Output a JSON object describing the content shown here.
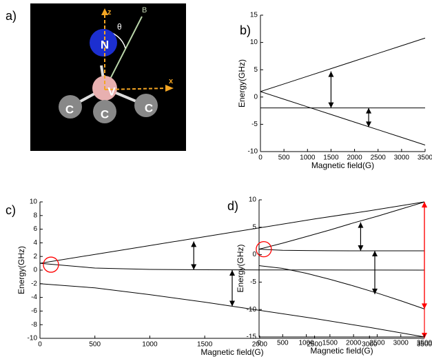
{
  "diagram": {
    "panel_label": "a)",
    "atoms": [
      "N",
      "V",
      "C",
      "C",
      "C"
    ],
    "axes": [
      "z",
      "x",
      "B"
    ],
    "angle": "θ"
  },
  "chart_data": [
    {
      "type": "line",
      "panel_label": "b)",
      "x_label": "Magnetic field(G)",
      "y_label": "Energy(GHz)",
      "x": [
        0,
        500,
        1000,
        1500,
        2000,
        2500,
        3000,
        3500
      ],
      "series": [
        {
          "color": "#000000",
          "values": [
            1,
            2.4,
            3.8,
            5.2,
            6.6,
            8.0,
            9.4,
            10.8
          ]
        },
        {
          "color": "#000000",
          "values": [
            -2,
            -2,
            -2,
            -2,
            -2,
            -2,
            -2,
            -2
          ]
        },
        {
          "color": "#000000",
          "values": [
            1,
            -0.4,
            -1.8,
            -3.2,
            -4.6,
            -6.0,
            -7.4,
            -8.8
          ]
        }
      ],
      "arrows": [
        {
          "x": 1500,
          "from": 4.7,
          "to": -2,
          "color": "#000000"
        },
        {
          "x": 2300,
          "from": -2,
          "to": -5.5,
          "color": "#000000"
        }
      ],
      "xlim": [
        0,
        3500
      ],
      "ylim": [
        -10,
        15
      ],
      "xticks": [
        0,
        500,
        1000,
        1500,
        2000,
        2500,
        3000,
        3500
      ],
      "yticks": [
        -10,
        -5,
        0,
        5,
        10,
        15
      ]
    },
    {
      "type": "line",
      "panel_label": "c)",
      "x_label": "Magnetic field(G)",
      "y_label": "Energy(GHz)",
      "x": [
        0,
        500,
        1000,
        1500,
        2000,
        2500,
        3000,
        3500
      ],
      "series": [
        {
          "color": "#000000",
          "values": [
            1,
            2.3,
            3.6,
            4.9,
            6.2,
            7.5,
            8.7,
            10
          ]
        },
        {
          "color": "#000000",
          "values": [
            1,
            0.3,
            0.1,
            0.05,
            0.03,
            0.02,
            0.01,
            0
          ]
        },
        {
          "color": "#000000",
          "values": [
            -2,
            -2.6,
            -3.6,
            -4.7,
            -5.9,
            -7.1,
            -8.4,
            -9.8
          ]
        }
      ],
      "arrows": [
        {
          "x": 1400,
          "from": 4.2,
          "to": 0.05,
          "color": "#000000"
        },
        {
          "x": 1750,
          "from": 0,
          "to": -5.3,
          "color": "#000000"
        },
        {
          "x": 3500,
          "from": 10,
          "to": -10,
          "color": "#ff0000"
        }
      ],
      "circle": {
        "x": 100,
        "y": 0.8,
        "color": "#ff0000"
      },
      "xlim": [
        0,
        3500
      ],
      "ylim": [
        -10,
        10
      ],
      "xticks": [
        0,
        500,
        1000,
        1500,
        2000,
        2500,
        3000,
        3500
      ],
      "yticks": [
        -10,
        -8,
        -6,
        -4,
        -2,
        0,
        2,
        4,
        6,
        8,
        10
      ]
    },
    {
      "type": "line",
      "panel_label": "d)",
      "x_label": "Magnetic field(G)",
      "y_label": "Energy(GHz)",
      "x": [
        0,
        500,
        1000,
        1500,
        2000,
        2500,
        3000,
        3500
      ],
      "series": [
        {
          "color": "#000000",
          "values": [
            1,
            2.1,
            3.3,
            4.5,
            5.8,
            7.0,
            8.3,
            9.6
          ]
        },
        {
          "color": "#000000",
          "values": [
            1,
            0.8,
            0.75,
            0.72,
            0.7,
            0.7,
            0.7,
            0.7
          ]
        },
        {
          "color": "#000000",
          "values": [
            -2,
            -2.5,
            -3.4,
            -4.5,
            -5.7,
            -7.0,
            -8.4,
            -9.9
          ]
        }
      ],
      "arrows": [
        {
          "x": 2150,
          "from": 5.9,
          "to": 0.7,
          "color": "#000000"
        },
        {
          "x": 2450,
          "from": 0.7,
          "to": -7.2,
          "color": "#000000"
        },
        {
          "x": 3500,
          "from": 9.6,
          "to": -9.9,
          "color": "#ff0000"
        }
      ],
      "circle": {
        "x": 100,
        "y": 1,
        "color": "#ff0000"
      },
      "xlim": [
        0,
        3500
      ],
      "ylim": [
        -15,
        10
      ],
      "xticks": [
        0,
        500,
        1000,
        1500,
        2000,
        2500,
        3000,
        3500
      ],
      "yticks": [
        -15,
        -10,
        -5,
        0,
        5,
        10
      ]
    }
  ]
}
